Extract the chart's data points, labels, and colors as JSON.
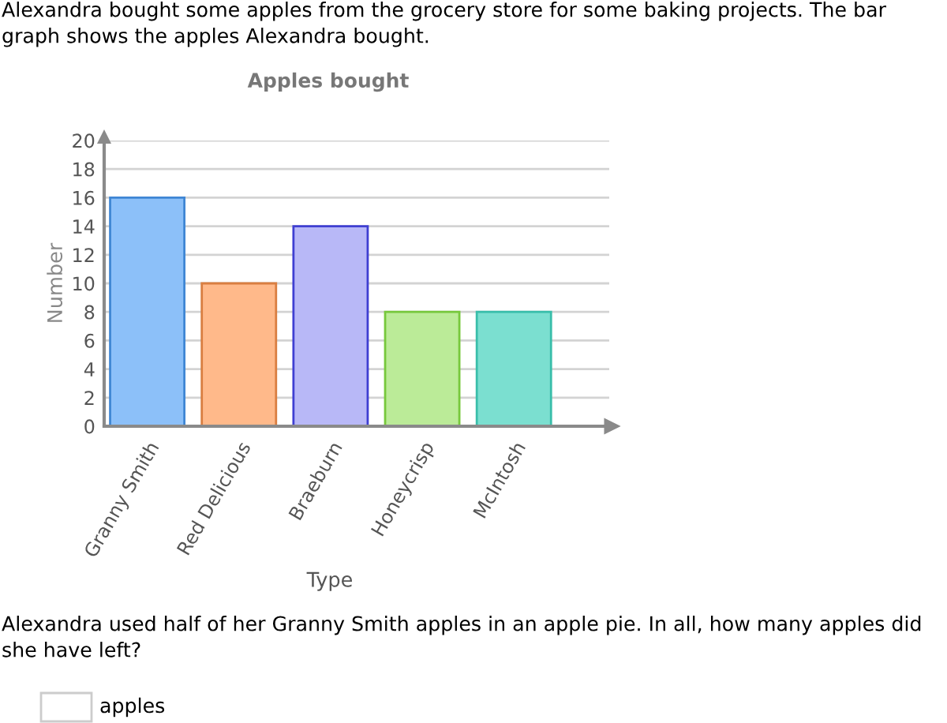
{
  "chart_data": {
    "type": "bar",
    "title": "Apples bought",
    "xlabel": "Type",
    "ylabel": "Number",
    "categories": [
      "Granny Smith",
      "Red Delicious",
      "Braeburn",
      "Honeycrisp",
      "McIntosh"
    ],
    "values": [
      16,
      10,
      14,
      8,
      8
    ],
    "colors": [
      "#8cc0f9",
      "#ffb98a",
      "#b8b8f7",
      "#bbeb98",
      "#7bdfd0"
    ],
    "ylim": [
      0,
      20
    ],
    "yticks": [
      0,
      2,
      4,
      6,
      8,
      10,
      12,
      14,
      16,
      18,
      20
    ],
    "grid": "y",
    "annotations": [
      "Alexandra bought some apples from the grocery store for some baking projects. The bar graph shows the apples Alexandra bought.",
      "Alexandra used half of her Granny Smith apples in an apple pie. In all, how many apples did she have left?",
      "apples"
    ]
  }
}
